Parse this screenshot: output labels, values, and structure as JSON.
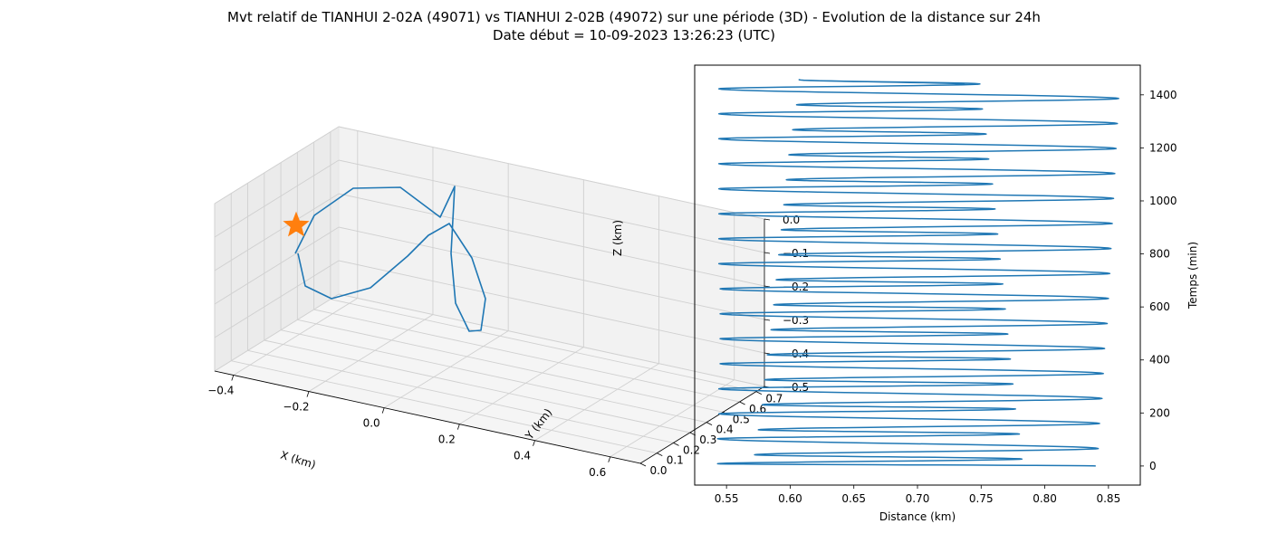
{
  "figure": {
    "title": "Mvt relatif de TIANHUI 2-02A (49071) vs TIANHUI 2-02B (49072) sur une période (3D) - Evolution de la distance sur 24h",
    "subtitle": "Date début = 10-09-2023 13:26:23 (UTC)"
  },
  "colors": {
    "series": "#1f77b4",
    "marker": "#ff7f0e",
    "pane": "#f2f2f2",
    "grid": "#d0d0d0"
  },
  "chart_data": [
    {
      "type": "line3d",
      "xlabel": "X (km)",
      "ylabel": "Y (km)",
      "zlabel": "Z (km)",
      "xlim": [
        -0.45,
        0.68
      ],
      "ylim": [
        0.0,
        0.75
      ],
      "zlim": [
        -0.5,
        0.0
      ],
      "x_ticks": [
        "−0.4",
        "−0.2",
        "0.0",
        "0.2",
        "0.4",
        "0.6"
      ],
      "y_ticks": [
        "0.0",
        "0.1",
        "0.2",
        "0.3",
        "0.4",
        "0.5",
        "0.6",
        "0.7"
      ],
      "z_ticks": [
        "0.0",
        "−0.1",
        "−0.2",
        "−0.3",
        "−0.4",
        "−0.5"
      ],
      "grid": true,
      "marker": {
        "shape": "star",
        "label": "start"
      }
    },
    {
      "type": "line",
      "xlabel": "Distance (km)",
      "ylabel": "Temps (min)",
      "xlim": [
        0.525,
        0.875
      ],
      "ylim": [
        -72,
        1512
      ],
      "x_ticks": [
        "0.55",
        "0.60",
        "0.65",
        "0.70",
        "0.75",
        "0.80",
        "0.85"
      ],
      "y_ticks": [
        "0",
        "200",
        "400",
        "600",
        "800",
        "1000",
        "1200",
        "1400"
      ],
      "series": [
        {
          "period_min": 94.3,
          "peaks_max": [
            0.842,
            0.843,
            0.845,
            0.846,
            0.847,
            0.849,
            0.85,
            0.851,
            0.852,
            0.853,
            0.854,
            0.855,
            0.856,
            0.857,
            0.858
          ],
          "troughs_min": [
            0.543,
            0.543,
            0.544,
            0.544,
            0.545,
            0.545,
            0.545,
            0.545,
            0.544,
            0.544,
            0.544,
            0.544,
            0.544,
            0.544,
            0.544
          ],
          "secondary_max": [
            0.782,
            0.78,
            0.777,
            0.775,
            0.773,
            0.771,
            0.769,
            0.767,
            0.765,
            0.763,
            0.761,
            0.759,
            0.756,
            0.754,
            0.751,
            0.749
          ],
          "secondary_min": [
            0.572,
            0.575,
            0.578,
            0.58,
            0.582,
            0.585,
            0.587,
            0.589,
            0.591,
            0.593,
            0.595,
            0.597,
            0.599,
            0.602,
            0.605,
            0.607
          ],
          "start": {
            "t": 0,
            "d": 0.84
          },
          "end": {
            "t": 1440,
            "d": 0.737
          }
        }
      ]
    }
  ]
}
